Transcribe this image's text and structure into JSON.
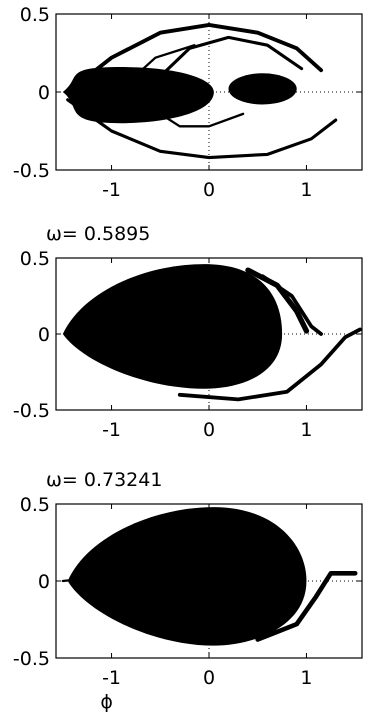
{
  "chart_data": [
    {
      "type": "scatter",
      "title": "",
      "xlabel": "",
      "ylabel": "",
      "xlim": [
        -1.57,
        1.57
      ],
      "ylim": [
        -0.5,
        0.5
      ],
      "xticks": [
        "-1",
        "0",
        "1"
      ],
      "yticks": [
        "0.5",
        "0",
        "-0.5"
      ],
      "grid": "dotted lines at x=0 and y=0",
      "regions": [
        {
          "shape": "lens",
          "xmin": -1.5,
          "xmax": 0.05,
          "ymax": 0.16,
          "ymin": -0.2,
          "peak_x": -0.9
        },
        {
          "shape": "ellipse",
          "cx": 0.55,
          "cy": 0.02,
          "rx": 0.35,
          "ry": 0.1
        },
        {
          "shape": "band",
          "points": [
            [
              -1.45,
              0.0
            ],
            [
              -1.0,
              0.22
            ],
            [
              -0.5,
              0.38
            ],
            [
              0.0,
              0.43
            ],
            [
              0.5,
              0.38
            ],
            [
              0.9,
              0.28
            ],
            [
              1.15,
              0.14
            ]
          ],
          "width": 0.025
        },
        {
          "shape": "band",
          "points": [
            [
              -1.45,
              -0.05
            ],
            [
              -1.0,
              -0.25
            ],
            [
              -0.5,
              -0.38
            ],
            [
              0.0,
              -0.42
            ],
            [
              0.6,
              -0.4
            ],
            [
              1.05,
              -0.3
            ],
            [
              1.3,
              -0.18
            ]
          ],
          "width": 0.02
        },
        {
          "shape": "band",
          "points": [
            [
              -0.5,
              0.1
            ],
            [
              -0.2,
              0.28
            ],
            [
              0.2,
              0.35
            ],
            [
              0.6,
              0.3
            ],
            [
              0.95,
              0.15
            ]
          ],
          "width": 0.02
        },
        {
          "shape": "band",
          "points": [
            [
              -0.85,
              0.05
            ],
            [
              -0.55,
              0.22
            ],
            [
              -0.15,
              0.3
            ]
          ],
          "width": 0.015
        },
        {
          "shape": "band",
          "points": [
            [
              -0.6,
              -0.1
            ],
            [
              -0.3,
              -0.22
            ],
            [
              0.0,
              -0.22
            ],
            [
              0.35,
              -0.14
            ]
          ],
          "width": 0.015
        }
      ]
    },
    {
      "type": "scatter",
      "title": "ω= 0.5895",
      "xlabel": "",
      "ylabel": "",
      "xlim": [
        -1.57,
        1.57
      ],
      "ylim": [
        -0.5,
        0.5
      ],
      "xticks": [
        "-1",
        "0",
        "1"
      ],
      "yticks": [
        "0.5",
        "0",
        "-0.5"
      ],
      "grid": "dotted lines at x=0 and y=0",
      "regions": [
        {
          "shape": "lens",
          "xmin": -1.5,
          "xmax": 0.75,
          "ymax": 0.46,
          "ymin": -0.36,
          "peak_x": -0.05
        },
        {
          "shape": "band",
          "points": [
            [
              0.4,
              0.42
            ],
            [
              0.7,
              0.32
            ],
            [
              0.9,
              0.15
            ],
            [
              1.0,
              0.02
            ]
          ],
          "width": 0.035
        },
        {
          "shape": "band",
          "points": [
            [
              0.55,
              0.38
            ],
            [
              0.85,
              0.25
            ],
            [
              1.05,
              0.05
            ],
            [
              1.15,
              0.0
            ]
          ],
          "width": 0.025
        },
        {
          "shape": "band",
          "points": [
            [
              -0.3,
              -0.4
            ],
            [
              0.3,
              -0.43
            ],
            [
              0.8,
              -0.38
            ],
            [
              1.15,
              -0.2
            ],
            [
              1.4,
              -0.02
            ],
            [
              1.55,
              0.03
            ]
          ],
          "width": 0.025
        }
      ]
    },
    {
      "type": "scatter",
      "title": "ω= 0.73241",
      "xlabel": "ϕ",
      "ylabel": "",
      "xlim": [
        -1.57,
        1.57
      ],
      "ylim": [
        -0.5,
        0.5
      ],
      "xticks": [
        "-1",
        "0",
        "1"
      ],
      "yticks": [
        "0.5",
        "0",
        "-0.5"
      ],
      "grid": "dotted lines at x=0 and y=0",
      "regions": [
        {
          "shape": "lens",
          "xmin": -1.45,
          "xmax": 1.0,
          "ymax": 0.48,
          "ymin": -0.42,
          "peak_x": 0.05
        },
        {
          "shape": "band",
          "points": [
            [
              0.5,
              -0.38
            ],
            [
              0.9,
              -0.28
            ],
            [
              1.1,
              -0.1
            ],
            [
              1.25,
              0.05
            ],
            [
              1.5,
              0.05
            ]
          ],
          "width": 0.03
        },
        {
          "shape": "band",
          "points": [
            [
              -1.5,
              0.0
            ],
            [
              -1.2,
              0.02
            ],
            [
              -1.0,
              0.05
            ]
          ],
          "width": 0.015
        }
      ]
    }
  ]
}
